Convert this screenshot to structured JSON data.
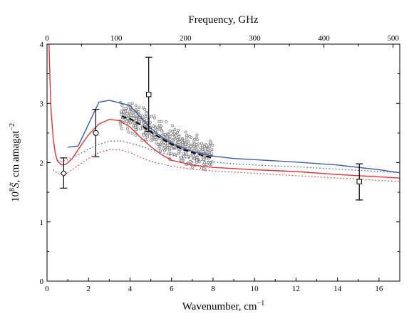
{
  "chart_data": {
    "type": "line",
    "x_bottom": {
      "label": "Wavenumber,  cm",
      "label_sup": "−1",
      "range": [
        0,
        17
      ],
      "ticks": [
        0,
        2,
        4,
        6,
        8,
        10,
        12,
        14,
        16
      ]
    },
    "x_top": {
      "label": "Frequency,  GHz",
      "range_ghz": [
        0,
        509.6
      ],
      "ticks": [
        0,
        100,
        200,
        300,
        400,
        500
      ]
    },
    "y": {
      "label_prefix": "10",
      "label_prefix_sup": "8",
      "label_symbol": "S̃",
      "label_mid": ",  cm amagat",
      "label_sup": "−2",
      "range": [
        0,
        4
      ],
      "ticks": [
        0,
        1,
        2,
        3,
        4
      ]
    },
    "grid": false,
    "legend": "none",
    "series": [
      {
        "style": "blue-solid",
        "color": "#3b5ba8",
        "x": [
          1.0,
          1.2,
          1.5,
          2.0,
          2.5,
          3.0,
          3.5,
          4.0,
          4.5,
          5.0,
          5.5,
          6.0,
          7.0,
          8.0,
          9.0,
          10.0,
          12.0,
          14.0,
          16.0,
          17.0
        ],
        "y": [
          2.26,
          2.27,
          2.28,
          2.65,
          3.02,
          3.05,
          3.01,
          2.96,
          2.77,
          2.58,
          2.44,
          2.33,
          2.19,
          2.11,
          2.07,
          2.05,
          2.01,
          1.96,
          1.88,
          1.83
        ]
      },
      {
        "style": "red-solid",
        "color": "#e03434",
        "x": [
          0.05,
          0.1,
          0.15,
          0.2,
          0.3,
          0.4,
          0.5,
          0.7,
          0.9,
          1.2,
          1.5,
          2.0,
          2.5,
          3.0,
          3.5,
          4.0,
          4.5,
          5.0,
          5.5,
          6.0,
          7.0,
          8.0,
          9.0,
          10.0,
          12.0,
          14.0,
          16.0,
          17.0
        ],
        "y": [
          4.5,
          3.95,
          3.3,
          2.85,
          2.4,
          2.15,
          2.03,
          1.96,
          1.97,
          2.06,
          2.22,
          2.47,
          2.65,
          2.73,
          2.71,
          2.6,
          2.43,
          2.27,
          2.14,
          2.04,
          1.96,
          1.92,
          1.9,
          1.88,
          1.85,
          1.8,
          1.76,
          1.74
        ]
      },
      {
        "style": "blue-dotted",
        "color": "#3b5ba8",
        "x": [
          0.5,
          0.7,
          1.0,
          1.5,
          2.0,
          2.5,
          3.0,
          3.5,
          4.0,
          4.5,
          5.0,
          6.0,
          7.0,
          8.0,
          9.0,
          10.0,
          12.0,
          14.0,
          16.0,
          17.0
        ],
        "y": [
          2.04,
          2.02,
          2.05,
          2.13,
          2.23,
          2.31,
          2.36,
          2.37,
          2.33,
          2.28,
          2.22,
          2.12,
          2.06,
          2.01,
          1.98,
          1.96,
          1.93,
          1.89,
          1.85,
          1.83
        ]
      },
      {
        "style": "red-dotted",
        "color": "#e03434",
        "x": [
          0.3,
          0.5,
          0.7,
          1.0,
          1.5,
          2.0,
          2.5,
          3.0,
          3.5,
          4.0,
          4.5,
          5.0,
          6.0,
          7.0,
          8.0,
          9.0,
          10.0,
          12.0,
          14.0,
          16.0,
          17.0
        ],
        "y": [
          1.88,
          1.82,
          1.8,
          1.83,
          1.95,
          2.07,
          2.17,
          2.22,
          2.22,
          2.17,
          2.09,
          2.02,
          1.94,
          1.89,
          1.86,
          1.84,
          1.82,
          1.78,
          1.74,
          1.7,
          1.68
        ]
      },
      {
        "style": "black-dashed",
        "color": "#000000",
        "x": [
          3.6,
          4.0,
          4.5,
          5.0,
          5.5,
          6.0,
          6.5,
          7.0,
          7.5,
          8.0
        ],
        "y": [
          2.78,
          2.74,
          2.64,
          2.52,
          2.41,
          2.31,
          2.23,
          2.17,
          2.12,
          2.08
        ]
      }
    ],
    "error_points": [
      {
        "marker": "diamond",
        "x": 0.8,
        "y": 1.82,
        "y_low": 1.57,
        "y_high": 2.08
      },
      {
        "marker": "circle",
        "x": 2.35,
        "y": 2.5,
        "y_low": 2.1,
        "y_high": 2.9
      },
      {
        "marker": "square",
        "x": 4.9,
        "y": 3.15,
        "y_low": 2.53,
        "y_high": 3.78
      },
      {
        "marker": "square",
        "x": 15.05,
        "y": 1.68,
        "y_low": 1.37,
        "y_high": 1.98
      }
    ],
    "scatter": {
      "marker": "small-open-circle",
      "color": "#808080",
      "x_range": [
        3.5,
        8.0
      ],
      "trend_ref": "black-dashed",
      "spread": 0.16,
      "count": 520
    }
  }
}
